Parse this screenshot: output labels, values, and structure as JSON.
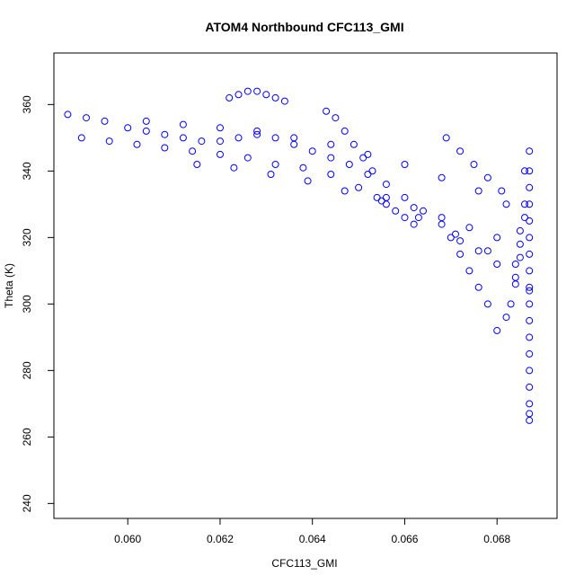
{
  "chart_data": {
    "type": "scatter",
    "title": "ATOM4 Northbound CFC113_GMI",
    "xlabel": "CFC113_GMI",
    "ylabel": "Theta (K)",
    "xlim": [
      0.0584,
      0.0693
    ],
    "ylim": [
      235.5,
      375.5
    ],
    "xticks": [
      0.06,
      0.062,
      0.064,
      0.066,
      0.068
    ],
    "xtick_labels": [
      "0.060",
      "0.062",
      "0.064",
      "0.066",
      "0.068"
    ],
    "yticks": [
      240,
      260,
      280,
      300,
      320,
      340,
      360
    ],
    "ytick_labels": [
      "240",
      "260",
      "280",
      "300",
      "320",
      "340",
      "360"
    ],
    "marker": "open-circle",
    "color": "#0000ff",
    "grid": false,
    "series": [
      {
        "x": [
          0.0587,
          0.0591,
          0.0595,
          0.06,
          0.0604,
          0.0608,
          0.0612,
          0.0616,
          0.062,
          0.0624,
          0.0628,
          0.0632,
          0.0636,
          0.064,
          0.0644,
          0.0648,
          0.0652,
          0.0656,
          0.066,
          0.0664,
          0.0668,
          0.0672,
          0.0676,
          0.068,
          0.0684,
          0.0687,
          0.059,
          0.0596,
          0.0602,
          0.0608,
          0.0614,
          0.062,
          0.0626,
          0.0632,
          0.0638,
          0.0644,
          0.065,
          0.0656,
          0.0662,
          0.0668,
          0.0674,
          0.068,
          0.0685,
          0.0604,
          0.0612,
          0.062,
          0.0628,
          0.0636,
          0.0644,
          0.0652,
          0.066,
          0.0668,
          0.0676,
          0.0682,
          0.0686,
          0.0615,
          0.0623,
          0.0631,
          0.0639,
          0.0647,
          0.0655,
          0.0663,
          0.0671,
          0.0678,
          0.0684,
          0.0622,
          0.0624,
          0.0626,
          0.0628,
          0.063,
          0.0632,
          0.0634,
          0.0643,
          0.0645,
          0.0647,
          0.0649,
          0.0651,
          0.0653,
          0.0654,
          0.0656,
          0.0658,
          0.066,
          0.0662,
          0.0669,
          0.0672,
          0.0675,
          0.0678,
          0.0681,
          0.0687,
          0.0687,
          0.0687,
          0.0687,
          0.0687,
          0.0687,
          0.0687,
          0.0687,
          0.0687,
          0.0687,
          0.0687,
          0.0687,
          0.0687,
          0.0687,
          0.0687,
          0.0687,
          0.0687,
          0.0687,
          0.0686,
          0.0686,
          0.0685,
          0.0685,
          0.0684,
          0.0683,
          0.0682,
          0.068,
          0.0678,
          0.0676,
          0.0674,
          0.0672,
          0.067
        ],
        "y": [
          357,
          356,
          355,
          353,
          352,
          351,
          350,
          349,
          349,
          350,
          351,
          350,
          348,
          346,
          344,
          342,
          339,
          336,
          332,
          328,
          324,
          319,
          316,
          312,
          308,
          304,
          350,
          349,
          348,
          347,
          346,
          345,
          344,
          342,
          341,
          339,
          335,
          332,
          329,
          326,
          323,
          320,
          318,
          355,
          354,
          353,
          352,
          350,
          348,
          345,
          342,
          338,
          334,
          330,
          326,
          342,
          341,
          339,
          337,
          334,
          331,
          326,
          321,
          316,
          312,
          362,
          363,
          364,
          364,
          363,
          362,
          361,
          358,
          356,
          352,
          348,
          344,
          340,
          332,
          330,
          328,
          326,
          324,
          350,
          346,
          342,
          338,
          334,
          346,
          340,
          335,
          330,
          325,
          320,
          315,
          310,
          305,
          300,
          295,
          290,
          285,
          280,
          275,
          270,
          267,
          265,
          340,
          330,
          322,
          314,
          306,
          300,
          296,
          292,
          300,
          305,
          310,
          315,
          320
        ]
      }
    ]
  }
}
